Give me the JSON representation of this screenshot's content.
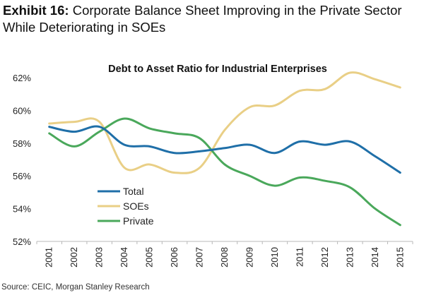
{
  "exhibit": {
    "label": "Exhibit 16:",
    "title_line1": "Corporate Balance Sheet Improving in the Private Sector",
    "title_line2": "While Deteriorating in SOEs"
  },
  "source": "Source: CEIC, Morgan Stanley Research",
  "chart_data": {
    "type": "line",
    "title": "Debt to Asset Ratio for Industrial Enterprises",
    "xlabel": "",
    "ylabel": "",
    "categories": [
      "2001",
      "2002",
      "2003",
      "2004",
      "2005",
      "2006",
      "2007",
      "2008",
      "2009",
      "2010",
      "2011",
      "2012",
      "2013",
      "2014",
      "2015"
    ],
    "ylim": [
      52,
      62
    ],
    "yticks": [
      52,
      54,
      56,
      58,
      60,
      62
    ],
    "ytick_labels": [
      "52%",
      "54%",
      "56%",
      "58%",
      "60%",
      "62%"
    ],
    "grid": false,
    "legend_position": "lower-left",
    "series": [
      {
        "name": "Total",
        "color": "#1f6fa8",
        "values": [
          59.0,
          58.7,
          59.0,
          57.9,
          57.8,
          57.4,
          57.5,
          57.7,
          57.9,
          57.4,
          58.1,
          57.9,
          58.1,
          57.2,
          56.2
        ]
      },
      {
        "name": "SOEs",
        "color": "#e9cf86",
        "values": [
          59.2,
          59.3,
          59.3,
          56.5,
          56.7,
          56.2,
          56.5,
          58.8,
          60.2,
          60.3,
          61.2,
          61.3,
          62.3,
          61.9,
          61.4
        ]
      },
      {
        "name": "Private",
        "color": "#4aa85b",
        "values": [
          58.6,
          57.8,
          58.7,
          59.5,
          58.9,
          58.6,
          58.3,
          56.7,
          56.0,
          55.4,
          55.9,
          55.7,
          55.3,
          54.0,
          53.0
        ]
      }
    ]
  }
}
